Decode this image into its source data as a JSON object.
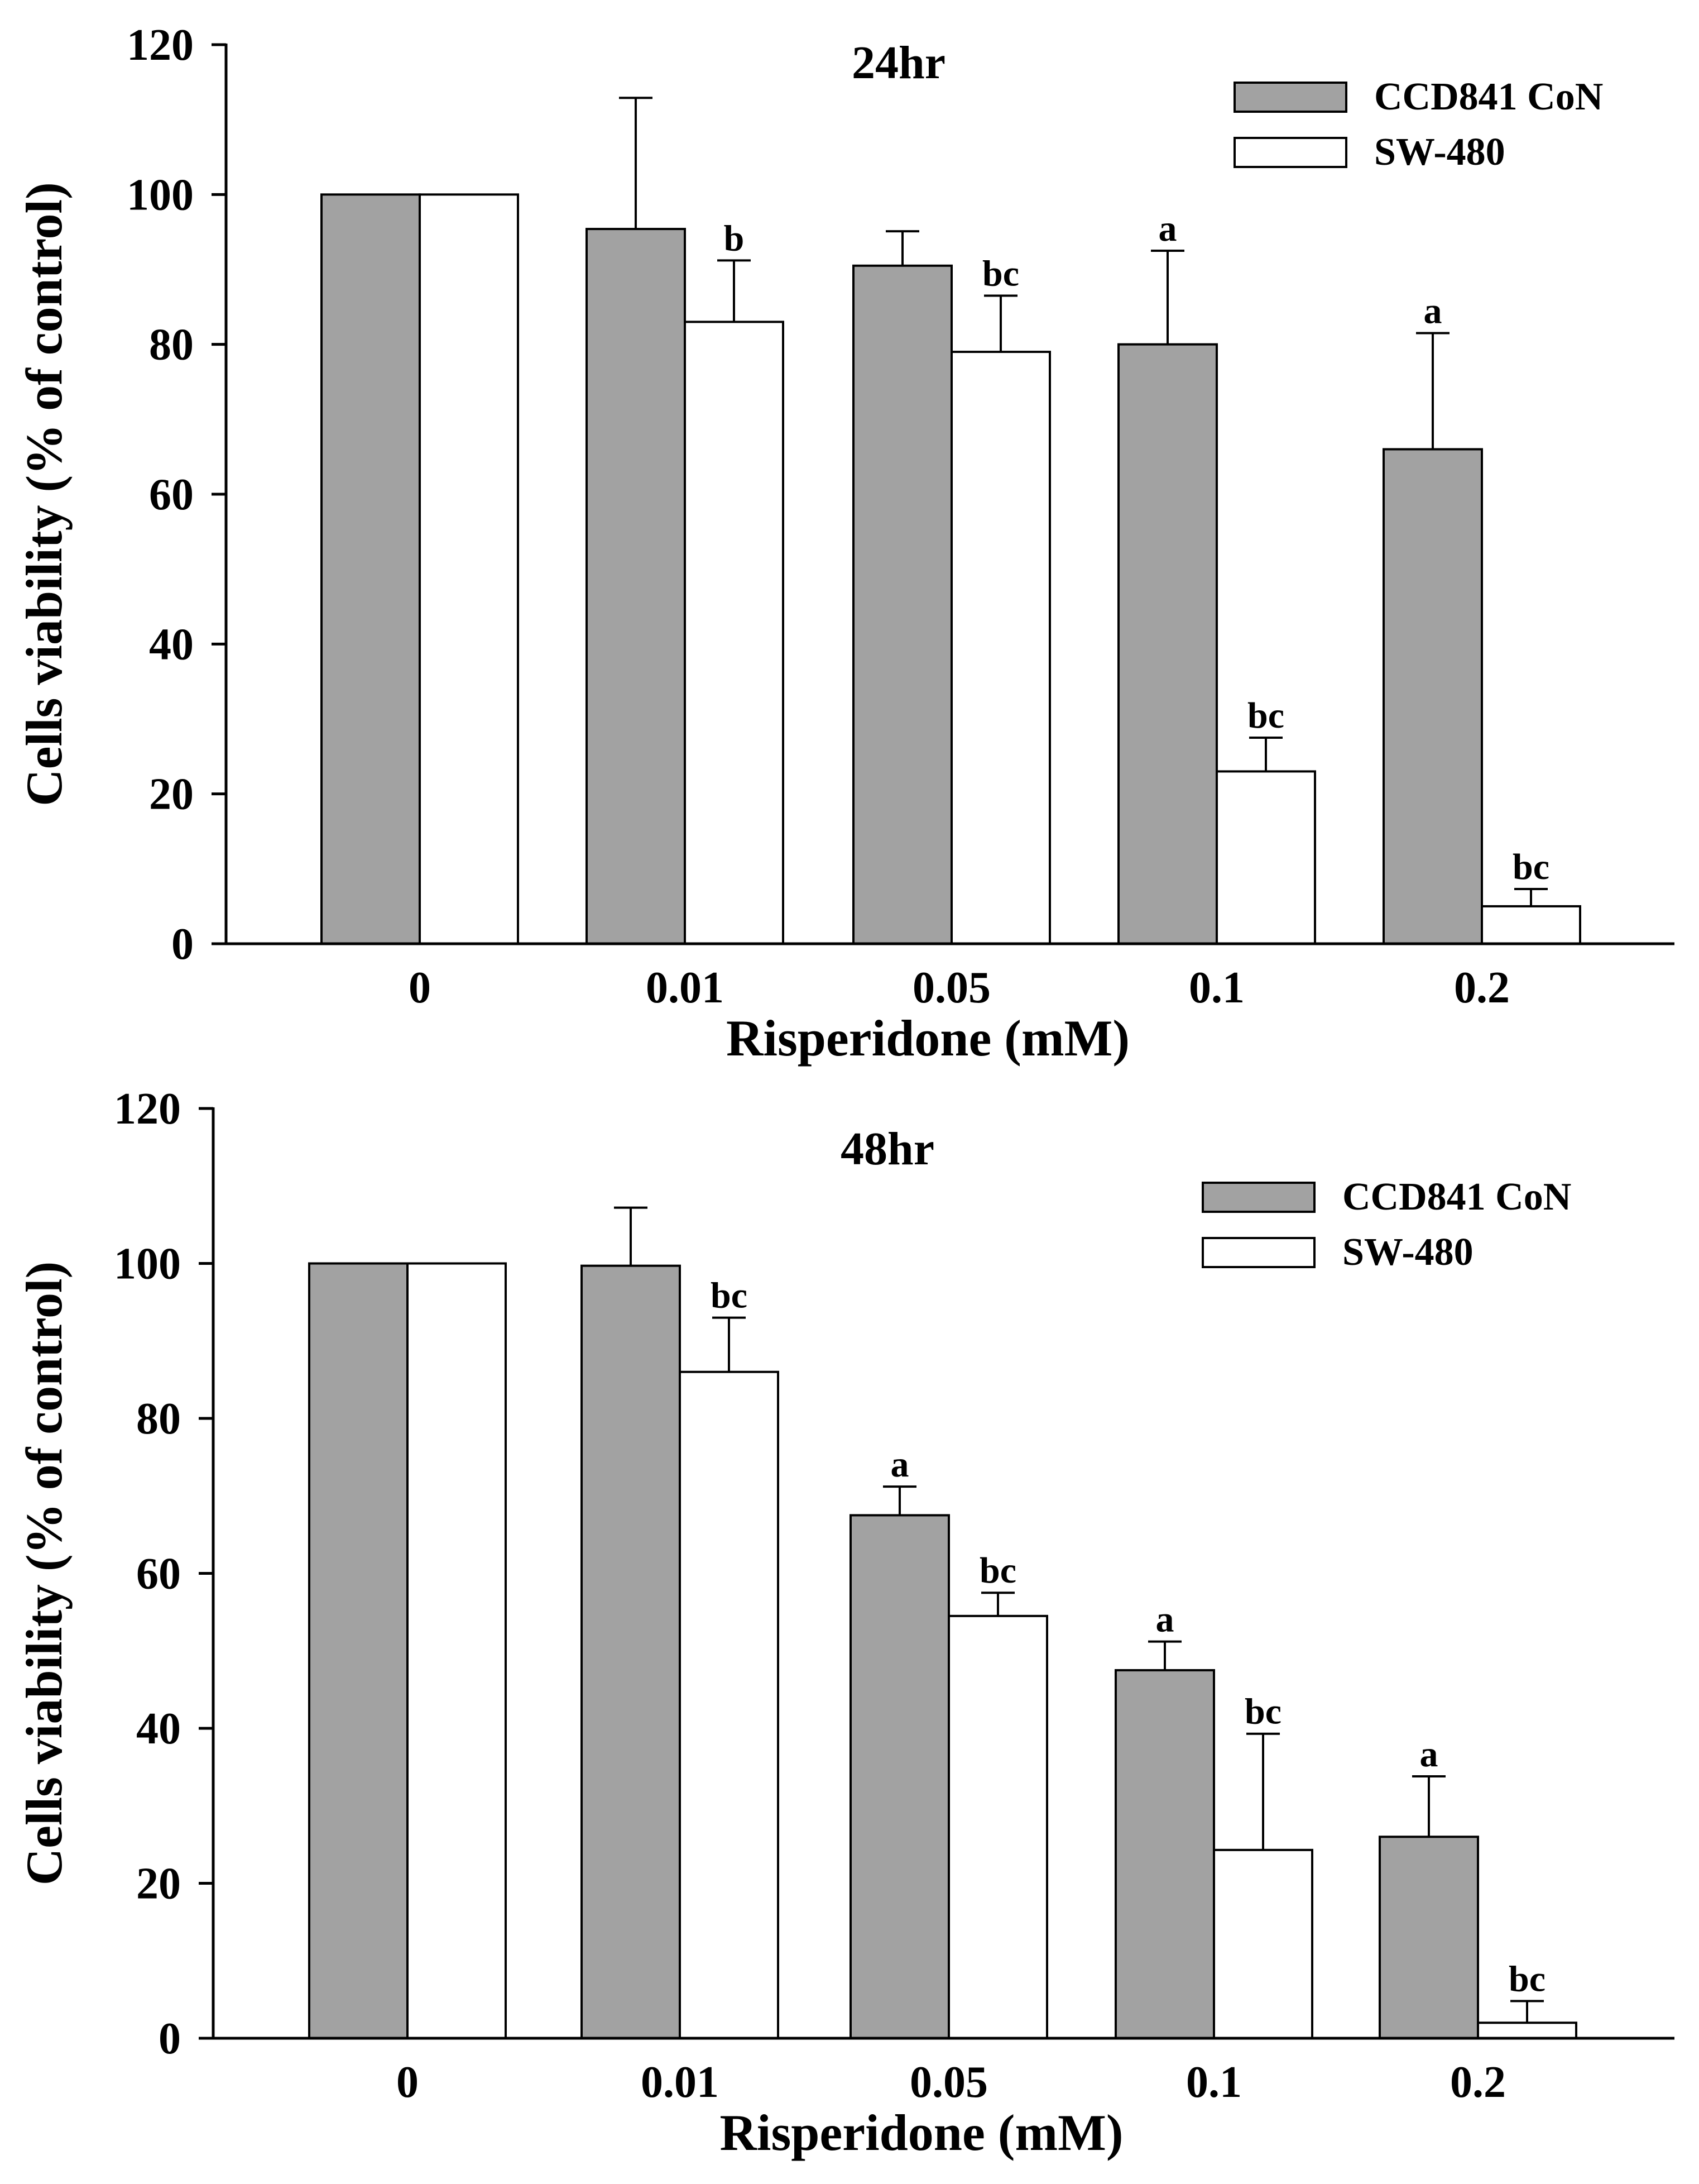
{
  "colors": {
    "series_1_fill": "#a2a2a2",
    "series_2_fill": "#ffffff",
    "stroke": "#000000"
  },
  "chart_data": [
    {
      "type": "bar",
      "title": "24hr",
      "xlabel": "Risperidone  (mM)",
      "ylabel": "Cells viability (% of control)",
      "categories": [
        "0",
        "0.01",
        "0.05",
        "0.1",
        "0.2"
      ],
      "ylim": [
        0,
        120
      ],
      "yticks": [
        0,
        20,
        40,
        60,
        80,
        100,
        120
      ],
      "grid": false,
      "legend_position": "top-right",
      "series": [
        {
          "name": "CCD841 CoN",
          "values": [
            100,
            95.4,
            90.5,
            80,
            66
          ],
          "error": [
            0,
            17.5,
            4.6,
            12.5,
            15.5
          ],
          "labels": [
            "",
            "",
            "",
            "a",
            "a"
          ]
        },
        {
          "name": "SW-480",
          "values": [
            100,
            83,
            79,
            23,
            5
          ],
          "error": [
            0,
            8.2,
            7.5,
            4.5,
            2.3
          ],
          "labels": [
            "",
            "b",
            "bc",
            "bc",
            "bc"
          ]
        }
      ]
    },
    {
      "type": "bar",
      "title": "48hr",
      "xlabel": "Risperidone  (mM)",
      "ylabel": "Cells viability (% of control)",
      "categories": [
        "0",
        "0.01",
        "0.05",
        "0.1",
        "0.2"
      ],
      "ylim": [
        0,
        120
      ],
      "yticks": [
        0,
        20,
        40,
        60,
        80,
        100,
        120
      ],
      "grid": false,
      "legend_position": "top-right",
      "series": [
        {
          "name": "CCD841 CoN",
          "values": [
            100,
            99.7,
            67.5,
            47.5,
            26
          ],
          "error": [
            0,
            7.5,
            3.7,
            3.7,
            7.8
          ],
          "labels": [
            "",
            "",
            "a",
            "a",
            "a"
          ]
        },
        {
          "name": "SW-480",
          "values": [
            100,
            86,
            54.5,
            24.3,
            2
          ],
          "error": [
            0,
            7,
            3,
            15,
            2.8
          ],
          "labels": [
            "",
            "bc",
            "bc",
            "bc",
            "bc"
          ]
        }
      ]
    }
  ]
}
